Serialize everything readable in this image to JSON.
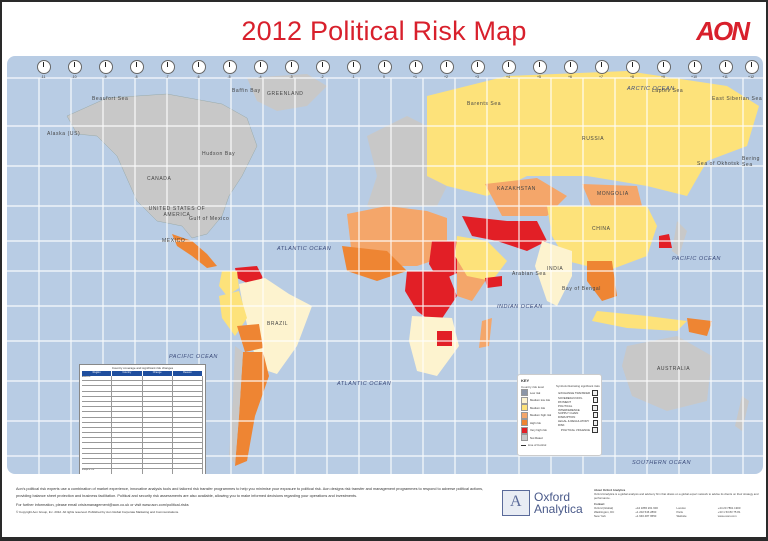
{
  "header": {
    "title": "2012 Political Risk Map",
    "logo": "AON"
  },
  "colors": {
    "title_red": "#d8202c",
    "ocean": "#b8cce4",
    "not_rated": "#c8c8c8",
    "low": "#8c96a8",
    "medium_low": "#fdf3cf",
    "medium": "#fde27a",
    "medium_high": "#f4a66a",
    "high": "#ee8533",
    "very_high": "#e21f26",
    "table_header": "#1f4e9e"
  },
  "clocks": [
    "-11",
    "-10",
    "-9",
    "-8",
    "-7",
    "-6",
    "-5",
    "-4",
    "-3",
    "-2",
    "-1",
    "0",
    "+1",
    "+2",
    "+3",
    "+4",
    "+5",
    "+6",
    "+7",
    "+8",
    "+9",
    "+10",
    "+11",
    "+12"
  ],
  "map_labels": {
    "countries": [
      "Alaska (US)",
      "CANADA",
      "UNITED STATES OF AMERICA",
      "MEXICO",
      "GREENLAND",
      "RUSSIA",
      "KAZAKHSTAN",
      "MONGOLIA",
      "CHINA",
      "INDIA",
      "BRAZIL",
      "AUSTRALIA"
    ],
    "seas": [
      "Beaufort Sea",
      "Baffin Bay",
      "Hudson Bay",
      "Gulf of Mexico",
      "Barents Sea",
      "Laptev Sea",
      "East Siberian Sea",
      "Bering Sea",
      "Sea of Okhotsk",
      "Bay of Bengal",
      "Arabian Sea"
    ],
    "oceans": {
      "arctic": "ARCTIC OCEAN",
      "atlantic_north": "ATLANTIC OCEAN",
      "atlantic_south": "ATLANTIC OCEAN",
      "pacific_east": "PACIFIC OCEAN",
      "pacific_west": "PACIFIC OCEAN",
      "indian": "INDIAN OCEAN",
      "southern": "SOUTHERN OCEAN"
    }
  },
  "table": {
    "title": "Country coverage and significant risk changes",
    "columns": [
      "Region",
      "Country",
      "Change",
      "Reason"
    ],
    "rows": [
      [
        "Americas",
        "",
        "",
        ""
      ],
      [
        "",
        "",
        "",
        ""
      ],
      [
        "",
        "",
        "",
        ""
      ],
      [
        "",
        "",
        "",
        ""
      ],
      [
        "",
        "",
        "",
        ""
      ],
      [
        "",
        "",
        "",
        ""
      ],
      [
        "",
        "",
        "",
        ""
      ],
      [
        "",
        "",
        "",
        ""
      ],
      [
        "",
        "",
        "",
        ""
      ],
      [
        "",
        "",
        "",
        ""
      ],
      [
        "",
        "",
        "",
        ""
      ],
      [
        "",
        "",
        "",
        ""
      ],
      [
        "",
        "",
        "",
        ""
      ],
      [
        "",
        "",
        "",
        ""
      ],
      [
        "",
        "",
        "",
        ""
      ],
      [
        "",
        "",
        "",
        ""
      ],
      [
        "",
        "",
        "",
        ""
      ],
      [
        "",
        "",
        "",
        ""
      ],
      [
        "Europe & CIS",
        "",
        "",
        ""
      ],
      [
        "",
        "",
        "",
        ""
      ],
      [
        "",
        "",
        "",
        ""
      ],
      [
        "",
        "",
        "",
        ""
      ]
    ]
  },
  "key": {
    "title": "KEY",
    "country_heading": "Country risk level",
    "levels": [
      {
        "label": "Low risk",
        "color": "#8c96a8"
      },
      {
        "label": "Medium low risk",
        "color": "#fdf3cf"
      },
      {
        "label": "Medium risk",
        "color": "#fde27a"
      },
      {
        "label": "Medium high risk",
        "color": "#f4a66a"
      },
      {
        "label": "High risk",
        "color": "#ee8533"
      },
      {
        "label": "Very high risk",
        "color": "#e21f26"
      },
      {
        "label": "Not Rated",
        "color": "#c8c8c8"
      },
      {
        "label": "Line of Control",
        "color": ""
      }
    ],
    "symbols_heading": "Symbols illustrating significant risks",
    "symbols": [
      "EXCHANGE TRANSFER",
      "SOVEREIGN NON-PAYMENT",
      "POLITICAL INTERFERENCE",
      "SUPPLY CHAIN DISRUPTION",
      "LEGAL & REGULATORY RISK",
      "POLITICAL VIOLENCE"
    ]
  },
  "footer": {
    "paragraph": "Aon's political risk experts use a combination of market experience, innovative analysis tools and tailored risk transfer programmes to help you minimise your exposure to political risk. Aon designs risk transfer and management programmes to respond to adverse political actions, providing balance sheet protection and business facilitation. Political and security risk assessments are also available, allowing you to make informed decisions regarding your operations and investments.",
    "contact": "For further information, please email crisismanagement@aon.co.uk or visit www.aon.com/political-risks",
    "copyright": "© Copyright Aon Group, Inc. 2012. All rights reserved. Published by Aon Global Corporate Marketing and Communications."
  },
  "partner": {
    "name_line1": "Oxford",
    "name_line2": "Analytica",
    "about_title": "About Oxford Analytica",
    "about_text": "Oxford Analytica is a global analysis and advisory firm that draws on a global expert network to advise its clients on their strategy and performance.",
    "contact_title": "Contact",
    "contacts": [
      {
        "city": "Oxford (Global)",
        "phone": "+44 1865 261 600"
      },
      {
        "city": "London",
        "phone": "+44 20 7861 1900"
      },
      {
        "city": "Washington, DC",
        "phone": "+1 202 546 2860"
      },
      {
        "city": "Paris",
        "phone": "+33 1 53 83 75 81"
      },
      {
        "city": "New York",
        "phone": "+1 646 487 9550"
      },
      {
        "city": "Website",
        "phone": "www.oxan.com"
      }
    ]
  }
}
